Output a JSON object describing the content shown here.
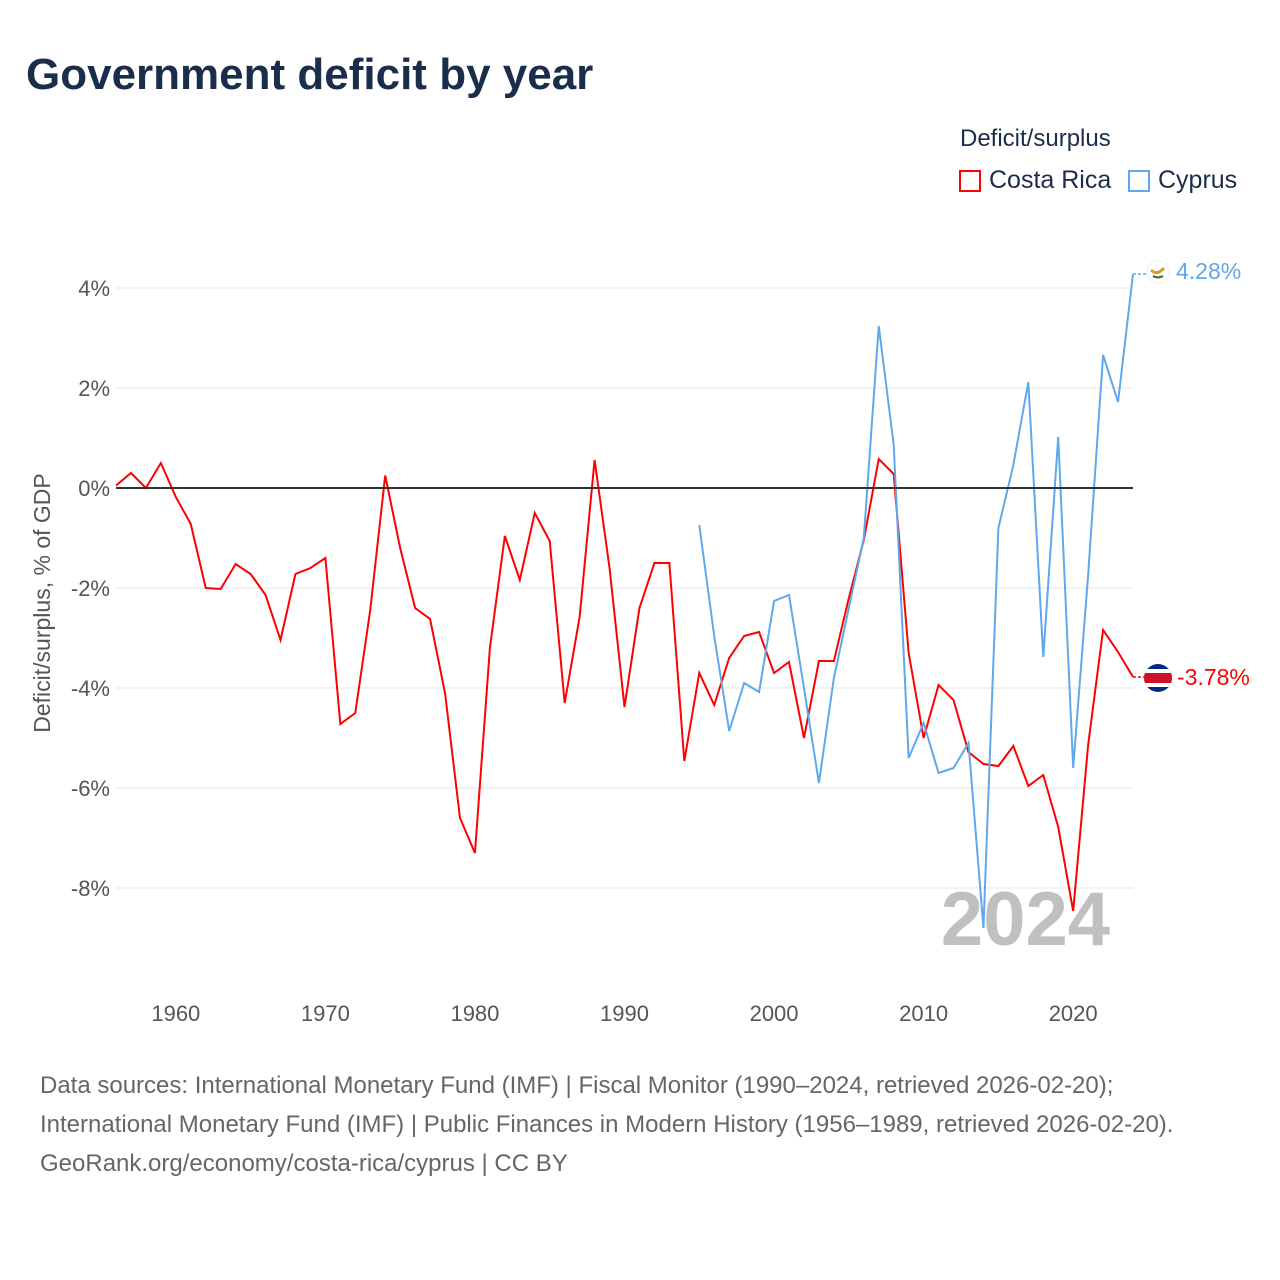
{
  "title": "Government deficit by year",
  "legend": {
    "title": "Deficit/surplus",
    "items": [
      {
        "label": "Costa Rica",
        "color": "#ff0000"
      },
      {
        "label": "Cyprus",
        "color": "#5fa8eb"
      }
    ]
  },
  "watermark_year": "2024",
  "end_labels": {
    "cyprus": "4.28%",
    "costa_rica": "-3.78%"
  },
  "footer": {
    "line1": "Data sources: International Monetary Fund (IMF) | Fiscal Monitor (1990–2024, retrieved 2026-02-20); International Monetary Fund (IMF) | Public Finances in Modern History (1956–1989, retrieved 2026-02-20).",
    "line2": "GeoRank.org/economy/costa-rica/cyprus | CC BY"
  },
  "chart_data": {
    "type": "line",
    "title": "Government deficit by year",
    "ylabel": "Deficit/surplus, % of GDP",
    "xlabel": "",
    "xlim": [
      1956,
      2024
    ],
    "ylim": [
      -9.8,
      4.6
    ],
    "x_ticks": [
      1960,
      1970,
      1980,
      1990,
      2000,
      2010,
      2020
    ],
    "y_ticks": [
      4,
      2,
      0,
      -2,
      -4,
      -6,
      -8
    ],
    "y_tick_labels": [
      "4%",
      "2%",
      "0%",
      "-2%",
      "-4%",
      "-6%",
      "-8%"
    ],
    "grid": true,
    "legend_position": "top-right",
    "series": [
      {
        "name": "Costa Rica",
        "color": "#ff0000",
        "start_year": 1956,
        "values": [
          0.05,
          0.3,
          0,
          0.5,
          -0.18,
          -0.72,
          -2.0,
          -2.02,
          -1.52,
          -1.72,
          -2.14,
          -3.04,
          -1.72,
          -1.6,
          -1.4,
          -4.72,
          -4.5,
          -2.44,
          0.25,
          -1.2,
          -2.4,
          -2.62,
          -4.1,
          -6.6,
          -7.3,
          -3.2,
          -0.96,
          -1.84,
          -0.5,
          -1.06,
          -4.3,
          -2.58,
          0.56,
          -1.6,
          -4.38,
          -2.4,
          -1.5,
          -1.5,
          -5.46,
          -3.7,
          -4.34,
          -3.4,
          -2.96,
          -2.88,
          -3.7,
          -3.48,
          -5.0,
          -3.46,
          -3.46,
          -2.2,
          -1.04,
          0.58,
          0.28,
          -3.3,
          -5.0,
          -3.94,
          -4.24,
          -5.28,
          -5.52,
          -5.56,
          -5.16,
          -5.96,
          -5.74,
          -6.78,
          -8.46,
          -5.14,
          -2.84,
          -3.28,
          -3.78
        ]
      },
      {
        "name": "Cyprus",
        "color": "#5fa8eb",
        "start_year": 1995,
        "values": [
          -0.74,
          -2.96,
          -4.86,
          -3.9,
          -4.08,
          -2.26,
          -2.14,
          -4.0,
          -5.9,
          -3.8,
          -2.4,
          -1.0,
          3.24,
          0.86,
          -5.4,
          -4.7,
          -5.7,
          -5.6,
          -5.1,
          -8.8,
          -0.8,
          0.46,
          2.12,
          -3.38,
          1.02,
          -5.6,
          -1.74,
          2.66,
          1.72,
          4.28
        ]
      }
    ]
  }
}
